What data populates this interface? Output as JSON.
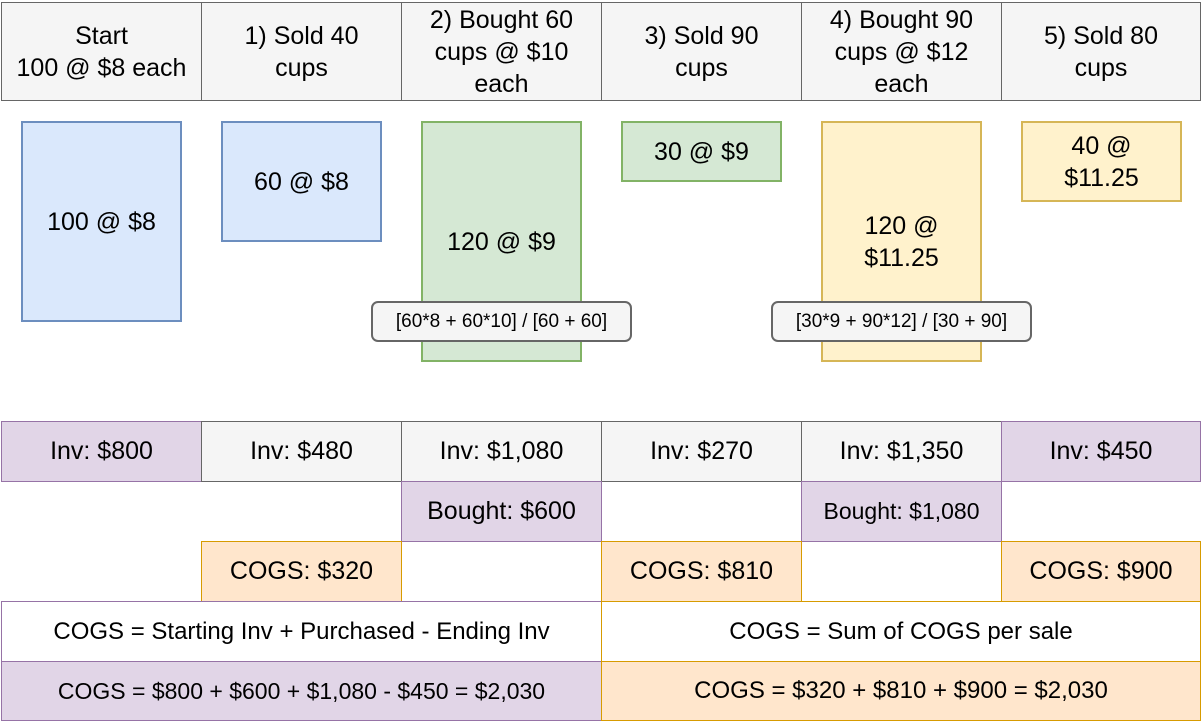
{
  "headers": [
    "Start\n100 @ $8 each",
    "1) Sold 40\ncups",
    "2) Bought 60\ncups @ $10\neach",
    "3) Sold 90\ncups",
    "4) Bought 90\ncups @ $12\neach",
    "5) Sold 80\ncups"
  ],
  "lots": {
    "start": "100 @ $8",
    "step1": "60 @ $8",
    "step2": "120 @ $9",
    "step3": "30 @ $9",
    "step4": "120 @\n$11.25",
    "step5": "40 @\n$11.25"
  },
  "calcs": {
    "step2": "[60*8 + 60*10] / [60 + 60]",
    "step4": "[30*9 + 90*12] / [30 + 90]"
  },
  "inventory": [
    "Inv: $800",
    "Inv: $480",
    "Inv: $1,080",
    "Inv: $270",
    "Inv: $1,350",
    "Inv: $450"
  ],
  "bought": {
    "step2": "Bought: $600",
    "step4": "Bought: $1,080"
  },
  "cogs": {
    "step1": "COGS: $320",
    "step3": "COGS: $810",
    "step5": "COGS: $900"
  },
  "formulas": {
    "left_title": "COGS = Starting Inv + Purchased - Ending Inv",
    "right_title": "COGS = Sum of COGS per sale",
    "left_calc": "COGS = $800 + $600 + $1,080 - $450 = $2,030",
    "right_calc": "COGS = $320 + $810 + $900 = $2,030"
  },
  "colors": {
    "blue_fill": "#dae8fc",
    "blue_stroke": "#6c8ebf",
    "green_fill": "#d5e8d4",
    "green_stroke": "#82b366",
    "yellow_fill": "#fff2cc",
    "yellow_stroke": "#d6b656",
    "purple_fill": "#e1d5e7",
    "purple_stroke": "#9673a6",
    "orange_fill": "#ffe6cc",
    "orange_stroke": "#d79b00",
    "gray_fill": "#f5f5f5",
    "gray_stroke": "#666666"
  }
}
